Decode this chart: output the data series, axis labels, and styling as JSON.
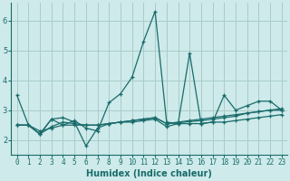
{
  "xlabel": "Humidex (Indice chaleur)",
  "background_color": "#ceeaea",
  "grid_color": "#aacccc",
  "line_color": "#1a6b6b",
  "xlim": [
    -0.5,
    23.5
  ],
  "ylim": [
    1.5,
    6.6
  ],
  "yticks": [
    2,
    3,
    4,
    5,
    6
  ],
  "xticks": [
    0,
    1,
    2,
    3,
    4,
    5,
    6,
    7,
    8,
    9,
    10,
    11,
    12,
    13,
    14,
    15,
    16,
    17,
    18,
    19,
    20,
    21,
    22,
    23
  ],
  "lines": [
    [
      3.5,
      2.5,
      2.2,
      2.7,
      2.5,
      2.65,
      2.4,
      2.3,
      3.25,
      3.55,
      4.1,
      5.3,
      6.3,
      2.6,
      2.55,
      4.9,
      2.55,
      2.6,
      3.5,
      3.0,
      3.15,
      3.3,
      3.3,
      3.0
    ],
    [
      2.5,
      2.5,
      2.2,
      2.7,
      2.75,
      2.6,
      1.8,
      2.4,
      2.55,
      2.6,
      2.6,
      2.65,
      2.7,
      2.45,
      2.55,
      2.55,
      2.55,
      2.6,
      2.6,
      2.65,
      2.7,
      2.75,
      2.8,
      2.85
    ],
    [
      2.5,
      2.5,
      2.2,
      2.45,
      2.6,
      2.55,
      2.5,
      2.5,
      2.55,
      2.6,
      2.65,
      2.7,
      2.75,
      2.55,
      2.6,
      2.65,
      2.7,
      2.75,
      2.8,
      2.85,
      2.9,
      2.95,
      3.0,
      3.05
    ],
    [
      2.5,
      2.5,
      2.3,
      2.4,
      2.5,
      2.5,
      2.5,
      2.5,
      2.55,
      2.6,
      2.65,
      2.7,
      2.75,
      2.55,
      2.58,
      2.62,
      2.65,
      2.7,
      2.75,
      2.8,
      2.9,
      2.95,
      3.0,
      3.0
    ]
  ],
  "xlabel_fontsize": 7,
  "tick_fontsize": 5.5,
  "linewidth": 0.9,
  "markersize": 3
}
